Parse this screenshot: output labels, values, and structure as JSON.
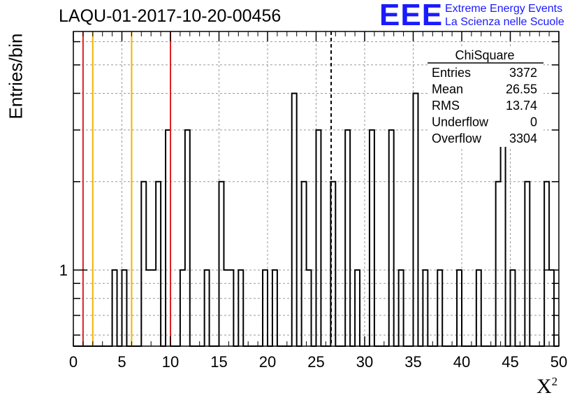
{
  "header": {
    "title": "LAQU-01-2017-10-20-00456",
    "logo_text": "EEE",
    "logo_line1": "Extreme Energy Events",
    "logo_line2": "La Scienza nelle Scuole"
  },
  "axes": {
    "ylabel": "Entries/bin",
    "xlabel_base": "X",
    "xlabel_sup": "2",
    "y_tick_label": "1"
  },
  "stats": {
    "title": "ChiSquare",
    "rows": [
      {
        "label": "Entries",
        "value": "3372"
      },
      {
        "label": "Mean",
        "value": "26.55"
      },
      {
        "label": "RMS",
        "value": "13.74"
      },
      {
        "label": "Underflow",
        "value": "0"
      },
      {
        "label": "Overflow",
        "value": "3304"
      }
    ]
  },
  "chart_data": {
    "type": "bar",
    "histogram": true,
    "xlim": [
      0,
      50
    ],
    "ylim": [
      0.55,
      6.5
    ],
    "yscale": "log",
    "x_ticks": [
      0,
      5,
      10,
      15,
      20,
      25,
      30,
      35,
      40,
      45,
      50
    ],
    "grid": true,
    "bin_width": 0.5,
    "bins": [
      [
        4,
        1
      ],
      [
        5,
        1
      ],
      [
        7,
        2
      ],
      [
        7.5,
        1
      ],
      [
        8,
        1
      ],
      [
        8.5,
        2
      ],
      [
        9.5,
        3
      ],
      [
        11,
        1
      ],
      [
        11.5,
        3
      ],
      [
        13.5,
        1
      ],
      [
        15,
        2
      ],
      [
        15.5,
        1
      ],
      [
        16,
        1
      ],
      [
        17,
        1
      ],
      [
        19.5,
        1
      ],
      [
        20.5,
        1
      ],
      [
        22.5,
        4
      ],
      [
        23.5,
        2
      ],
      [
        24,
        1
      ],
      [
        25,
        3
      ],
      [
        26.5,
        2
      ],
      [
        28,
        3
      ],
      [
        29,
        1
      ],
      [
        30.5,
        3
      ],
      [
        32.5,
        3
      ],
      [
        33.5,
        1
      ],
      [
        35,
        4
      ],
      [
        36,
        1
      ],
      [
        37.5,
        1
      ],
      [
        39.5,
        1
      ],
      [
        41.5,
        1
      ],
      [
        43.5,
        2
      ],
      [
        44,
        5
      ],
      [
        45,
        1
      ],
      [
        46.5,
        2
      ],
      [
        48.5,
        2
      ],
      [
        49,
        1
      ]
    ],
    "vertical_lines": [
      {
        "x": 1,
        "color": "#dd2222",
        "style": "solid"
      },
      {
        "x": 10,
        "color": "#dd2222",
        "style": "solid"
      },
      {
        "x": 2,
        "color": "#f0b400",
        "style": "solid"
      },
      {
        "x": 6,
        "color": "#f0b400",
        "style": "solid"
      },
      {
        "x": 26.55,
        "color": "#000000",
        "style": "dashed"
      }
    ]
  }
}
